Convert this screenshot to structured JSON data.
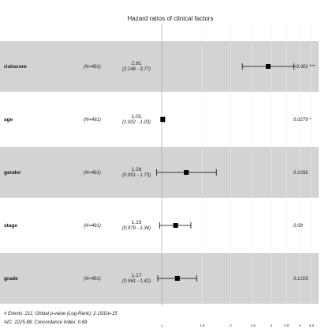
{
  "chart_data": {
    "type": "forest",
    "title": "Hazard ratios of clinical factors",
    "scale": "log",
    "x_ticks": [
      "1",
      "1.5",
      "2",
      "2.5",
      "3",
      "3.5",
      "4",
      "4.5"
    ],
    "rows": [
      {
        "variable": "riskscore",
        "n_label": "(N=491)",
        "hr": 2.91,
        "hr_label": "2.91",
        "ci_low": 2.246,
        "ci_high": 3.77,
        "ci_label": "(2.246 - 3.77)",
        "p_label": "<0.001 ***",
        "shaded": true
      },
      {
        "variable": "age",
        "n_label": "(N=491)",
        "hr": 1.01,
        "hr_label": "1.01",
        "ci_low": 1.002,
        "ci_high": 1.03,
        "ci_label": "(1.002 - 1.03)",
        "p_label": "0.0279 *",
        "shaded": false
      },
      {
        "variable": "gender",
        "n_label": "(N=491)",
        "hr": 1.28,
        "hr_label": "1.28",
        "ci_low": 0.951,
        "ci_high": 1.73,
        "ci_label": "(0.951 - 1.73)",
        "p_label": "0.1031",
        "shaded": true
      },
      {
        "variable": "stage",
        "n_label": "(N=491)",
        "hr": 1.15,
        "hr_label": "1.15",
        "ci_low": 0.979,
        "ci_high": 1.34,
        "ci_label": "(0.979 - 1.34)",
        "p_label": "0.09",
        "shaded": false
      },
      {
        "variable": "grade",
        "n_label": "(N=491)",
        "hr": 1.17,
        "hr_label": "1.17",
        "ci_low": 0.961,
        "ci_high": 1.42,
        "ci_label": "(0.961 - 1.42)",
        "p_label": "0.1203",
        "shaded": true
      }
    ],
    "footnote_line1": "# Events: 211; Global p-value (Log-Rank): 2.1931e-15",
    "footnote_line2": "AIC: 2225.88; Concordance Index: 0.69",
    "colors": {
      "band": "#d3d3d3",
      "marker": "#000000",
      "reference_line": "#b0b0b0"
    }
  }
}
